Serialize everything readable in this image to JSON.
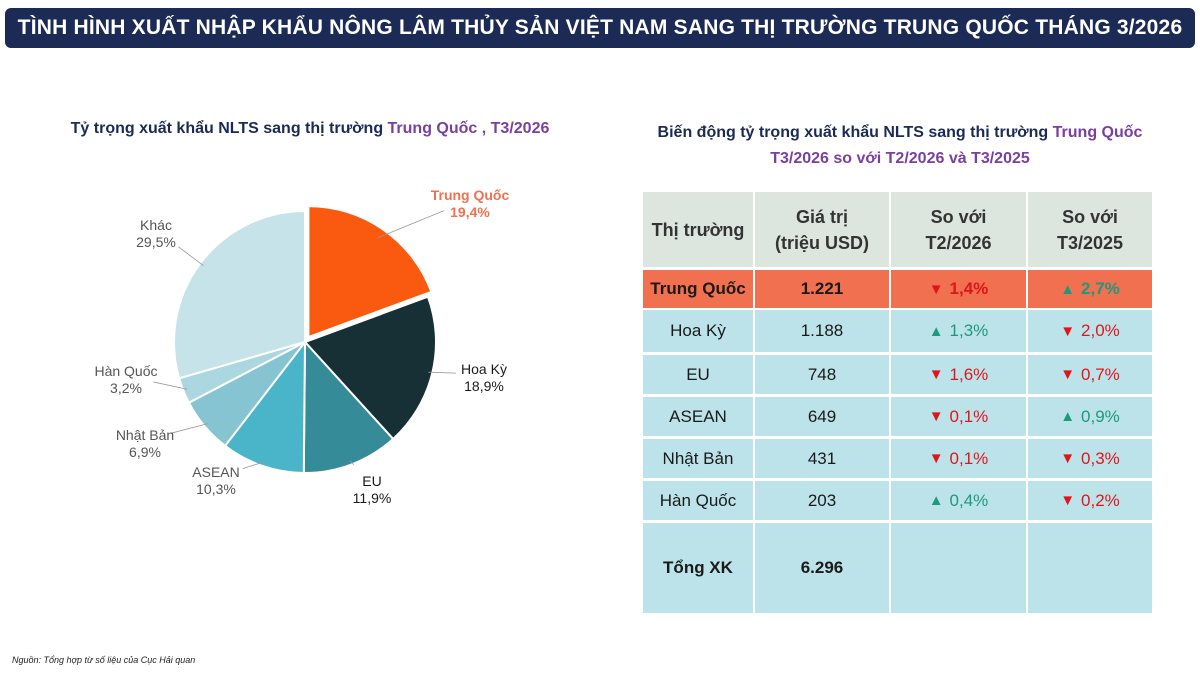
{
  "header": {
    "title": "TÌNH HÌNH XUẤT NHẬP KHẨU NÔNG LÂM THỦY SẢN VIỆT NAM SANG THỊ TRƯỜNG TRUNG QUỐC THÁNG 3/2026"
  },
  "pie_title": {
    "part1": "Tỷ trọng xuất khẩu NLTS sang thị trường ",
    "highlight": "Trung Quốc",
    "part2": " , T3/2026"
  },
  "table_title": {
    "line1_part1": "Biến động tỷ trọng xuất khẩu NLTS sang thị trường ",
    "line1_highlight": "Trung Quốc",
    "line2": "T3/2026 so với T2/2026 và T3/2025"
  },
  "colors": {
    "banner": "#1c2b55",
    "highlight_row": "#f07050",
    "up": "#1c9a7c",
    "down": "#e0151b"
  },
  "chart_data": [
    {
      "type": "pie",
      "title": "Tỷ trọng xuất khẩu NLTS sang thị trường Trung Quốc , T3/2026",
      "slices": [
        {
          "label": "Trung Quốc",
          "value": 19.4,
          "display": "19,4%",
          "color": "#fa5a0f",
          "exploded": true
        },
        {
          "label": "Hoa Kỳ",
          "value": 18.9,
          "display": "18,9%",
          "color": "#163036"
        },
        {
          "label": "EU",
          "value": 11.9,
          "display": "11,9%",
          "color": "#358c98"
        },
        {
          "label": "ASEAN",
          "value": 10.3,
          "display": "10,3%",
          "color": "#4ab5c8"
        },
        {
          "label": "Nhật Bản",
          "value": 6.9,
          "display": "6,9%",
          "color": "#86c4d1"
        },
        {
          "label": "Hàn Quốc",
          "value": 3.2,
          "display": "3,2%",
          "color": "#aad7e0"
        },
        {
          "label": "Khác",
          "value": 29.5,
          "display": "29,5%",
          "color": "#c6e3e9"
        }
      ]
    },
    {
      "type": "table",
      "columns": [
        "Thị trường",
        "Giá trị (triệu USD)",
        "So với T2/2026",
        "So với T3/2025"
      ],
      "rows": [
        {
          "market": "Trung Quốc",
          "value": "1.221",
          "vs_t2": "1,4%",
          "vs_t2_dir": "down",
          "vs_t3": "2,7%",
          "vs_t3_dir": "up",
          "highlight": true
        },
        {
          "market": "Hoa Kỳ",
          "value": "1.188",
          "vs_t2": "1,3%",
          "vs_t2_dir": "up",
          "vs_t3": "2,0%",
          "vs_t3_dir": "down"
        },
        {
          "market": "EU",
          "value": "748",
          "vs_t2": "1,6%",
          "vs_t2_dir": "down",
          "vs_t3": "0,7%",
          "vs_t3_dir": "down"
        },
        {
          "market": "ASEAN",
          "value": "649",
          "vs_t2": "0,1%",
          "vs_t2_dir": "down",
          "vs_t3": "0,9%",
          "vs_t3_dir": "up"
        },
        {
          "market": "Nhật Bản",
          "value": "431",
          "vs_t2": "0,1%",
          "vs_t2_dir": "down",
          "vs_t3": "0,3%",
          "vs_t3_dir": "down"
        },
        {
          "market": "Hàn Quốc",
          "value": "203",
          "vs_t2": "0,4%",
          "vs_t2_dir": "up",
          "vs_t3": "0,2%",
          "vs_t3_dir": "down"
        }
      ],
      "total": {
        "label": "Tổng XK",
        "value": "6.296"
      }
    }
  ],
  "table_header": {
    "col1": "Thị trường",
    "col2_l1": "Giá trị",
    "col2_l2": "(triệu USD)",
    "col3_l1": "So với",
    "col3_l2": "T2/2026",
    "col4_l1": "So với",
    "col4_l2": "T3/2025"
  },
  "source": "Nguồn: Tổng hợp từ số liệu của Cục Hải quan"
}
